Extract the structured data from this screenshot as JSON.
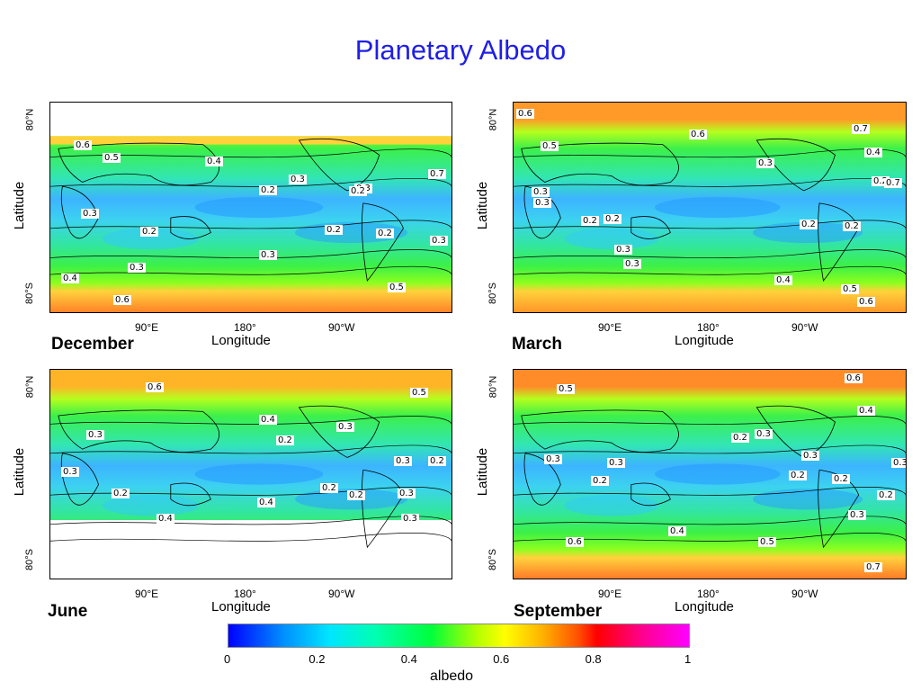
{
  "title": "Planetary Albedo",
  "axes": {
    "ylabel": "Latitude",
    "xlabel": "Longitude",
    "y_ticks": [
      "80°N",
      "80°S"
    ],
    "x_ticks": [
      "90°E",
      "180°",
      "90°W"
    ]
  },
  "panels": [
    {
      "season": "December",
      "contour_labels": [
        "0.6",
        "0.5",
        "0.4",
        "0.3",
        "0.2",
        "0.3",
        "0.3",
        "0.2",
        "0.2",
        "0.2",
        "0.3",
        "0.3",
        "0.4",
        "0.5",
        "0.6",
        "0.7",
        "0.3",
        "0.2"
      ]
    },
    {
      "season": "March",
      "contour_labels": [
        "0.6",
        "0.5",
        "0.6",
        "0.3",
        "0.7",
        "0.4",
        "0.2",
        "0.3",
        "0.3",
        "0.2",
        "0.2",
        "0.2",
        "0.3",
        "0.3",
        "0.4",
        "0.5",
        "0.6",
        "0.7",
        "0.2"
      ]
    },
    {
      "season": "June",
      "contour_labels": [
        "0.6",
        "0.5",
        "0.4",
        "0.3",
        "0.2",
        "0.3",
        "0.3",
        "0.2",
        "0.2",
        "0.2",
        "0.3",
        "0.3",
        "0.4",
        "0.4",
        "0.3",
        "0.2"
      ]
    },
    {
      "season": "September",
      "contour_labels": [
        "0.5",
        "0.6",
        "0.4",
        "0.3",
        "0.2",
        "0.3",
        "0.2",
        "0.3",
        "0.3",
        "0.2",
        "0.2",
        "0.2",
        "0.3",
        "0.4",
        "0.5",
        "0.6",
        "0.7",
        "0.3"
      ]
    }
  ],
  "colorbar": {
    "label": "albedo",
    "ticks": [
      "0",
      "0.2",
      "0.4",
      "0.6",
      "0.8",
      "1"
    ],
    "colors": [
      "#0000ff",
      "#00e6ff",
      "#00ff3c",
      "#ffff00",
      "#ff0000",
      "#ff00ff"
    ]
  }
}
